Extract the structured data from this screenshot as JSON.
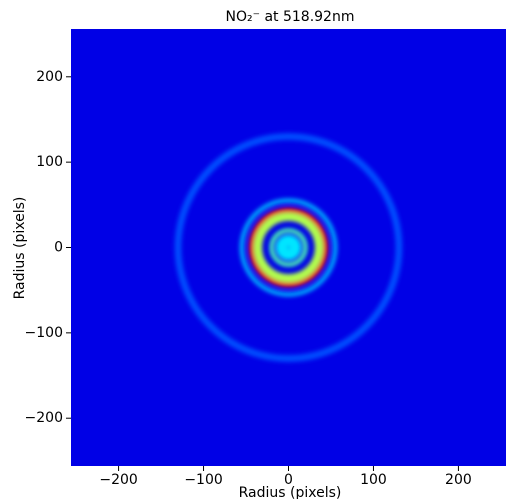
{
  "chart_data": {
    "type": "image",
    "title": "NO₂⁻ at 518.92nm",
    "xlabel": "Radius (pixels)",
    "ylabel": "Radius (pixels)",
    "xlim": [
      -256,
      256
    ],
    "ylim": [
      -256,
      256
    ],
    "xticks": [
      {
        "value": -200,
        "label": "−200"
      },
      {
        "value": -100,
        "label": "−100"
      },
      0,
      100,
      200
    ],
    "yticks": [
      {
        "value": -200,
        "label": "−200"
      },
      {
        "value": -100,
        "label": "−100"
      },
      0,
      100,
      200
    ],
    "colormap": "jet",
    "clim": [
      0,
      1
    ],
    "background": 0.1,
    "rings": [
      {
        "radius": 130,
        "width": 8,
        "intensity": 0.2
      },
      {
        "radius": 55,
        "width": 5,
        "intensity": 0.3
      },
      {
        "radius": 44,
        "width": 5,
        "intensity": 0.88
      },
      {
        "radius": 36,
        "width": 10,
        "intensity": 0.55
      },
      {
        "radius": 20,
        "width": 5,
        "intensity": 0.45
      },
      {
        "radius": 8,
        "width": 14,
        "intensity": 0.35
      }
    ]
  }
}
